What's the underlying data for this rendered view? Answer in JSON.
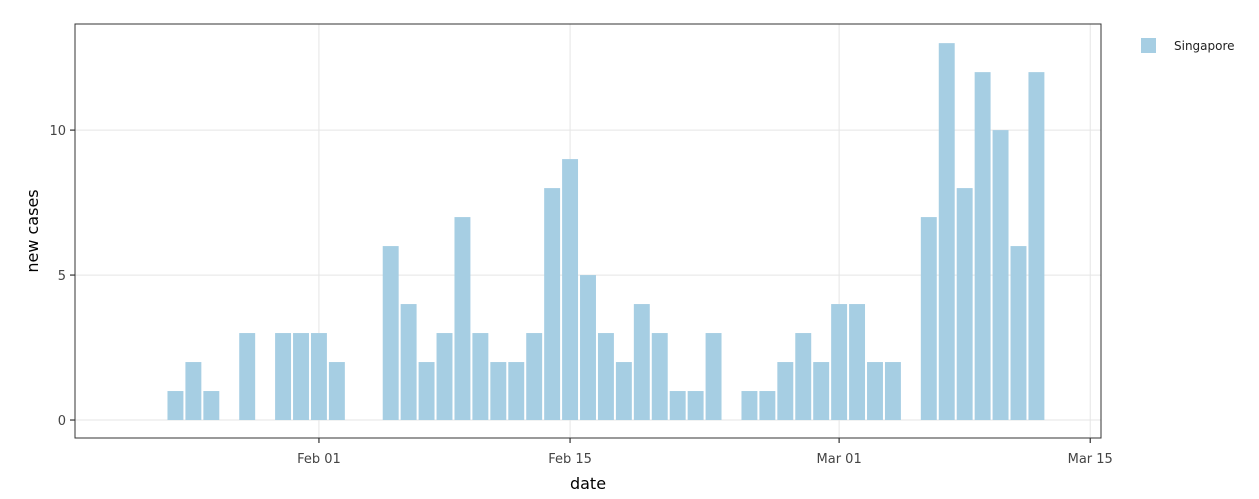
{
  "chart_data": {
    "type": "bar",
    "title": "",
    "xlabel": "date",
    "ylabel": "new cases",
    "xlim": [
      "2020-01-18",
      "2020-03-15"
    ],
    "ylim": [
      -0.62,
      13.66
    ],
    "grid": true,
    "legend": {
      "position": "top-right",
      "entries": [
        "Singapore"
      ]
    },
    "x_ticks": [
      {
        "date": "2020-02-01",
        "label": "Feb 01"
      },
      {
        "date": "2020-02-15",
        "label": "Feb 15"
      },
      {
        "date": "2020-03-01",
        "label": "Mar 01"
      },
      {
        "date": "2020-03-15",
        "label": "Mar 15"
      }
    ],
    "y_ticks": [
      {
        "value": 0,
        "label": "0"
      },
      {
        "value": 5,
        "label": "5"
      },
      {
        "value": 10,
        "label": "10"
      }
    ],
    "series": [
      {
        "name": "Singapore",
        "color": "#a6cee3",
        "points": [
          [
            "2020-01-24",
            1
          ],
          [
            "2020-01-25",
            2
          ],
          [
            "2020-01-26",
            1
          ],
          [
            "2020-01-28",
            3
          ],
          [
            "2020-01-30",
            3
          ],
          [
            "2020-01-31",
            3
          ],
          [
            "2020-02-01",
            3
          ],
          [
            "2020-02-02",
            2
          ],
          [
            "2020-02-05",
            6
          ],
          [
            "2020-02-06",
            4
          ],
          [
            "2020-02-07",
            2
          ],
          [
            "2020-02-08",
            3
          ],
          [
            "2020-02-09",
            7
          ],
          [
            "2020-02-10",
            3
          ],
          [
            "2020-02-11",
            2
          ],
          [
            "2020-02-12",
            2
          ],
          [
            "2020-02-13",
            3
          ],
          [
            "2020-02-14",
            8
          ],
          [
            "2020-02-15",
            9
          ],
          [
            "2020-02-16",
            5
          ],
          [
            "2020-02-17",
            3
          ],
          [
            "2020-02-18",
            2
          ],
          [
            "2020-02-19",
            4
          ],
          [
            "2020-02-20",
            3
          ],
          [
            "2020-02-21",
            1
          ],
          [
            "2020-02-22",
            1
          ],
          [
            "2020-02-23",
            3
          ],
          [
            "2020-02-25",
            1
          ],
          [
            "2020-02-26",
            1
          ],
          [
            "2020-02-27",
            2
          ],
          [
            "2020-02-28",
            3
          ],
          [
            "2020-02-29",
            2
          ],
          [
            "2020-03-01",
            4
          ],
          [
            "2020-03-02",
            4
          ],
          [
            "2020-03-03",
            2
          ],
          [
            "2020-03-04",
            2
          ],
          [
            "2020-03-06",
            7
          ],
          [
            "2020-03-07",
            13
          ],
          [
            "2020-03-08",
            8
          ],
          [
            "2020-03-09",
            12
          ],
          [
            "2020-03-10",
            10
          ],
          [
            "2020-03-11",
            6
          ],
          [
            "2020-03-12",
            12
          ]
        ]
      }
    ]
  }
}
